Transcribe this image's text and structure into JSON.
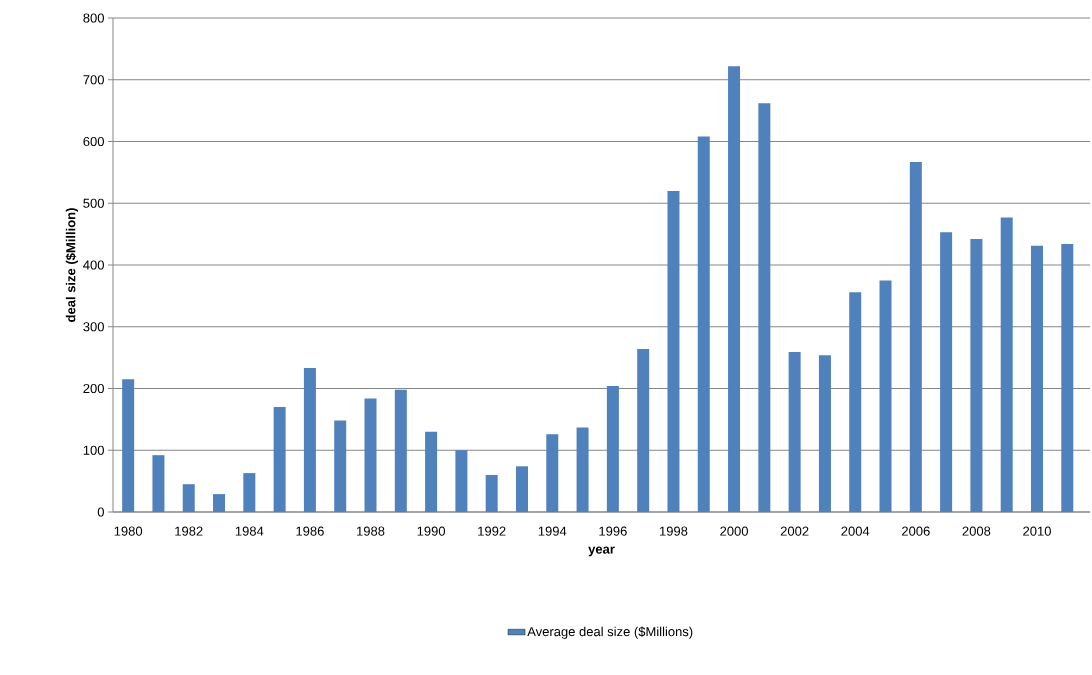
{
  "chart_data": {
    "type": "bar",
    "xlabel": "year",
    "ylabel": "deal size ($Million)",
    "categories": [
      "1980",
      null,
      "1982",
      null,
      "1984",
      null,
      "1986",
      null,
      "1988",
      null,
      "1990",
      null,
      "1992",
      null,
      "1994",
      null,
      "1996",
      null,
      "1998",
      null,
      "2000",
      null,
      "2002",
      null,
      "2004",
      null,
      "2006",
      null,
      "2008",
      null,
      "2010",
      null
    ],
    "series": [
      {
        "name": "Average deal size ($Millions)",
        "color": "#4f81bd",
        "values": [
          215,
          92,
          45,
          29,
          63,
          170,
          233,
          148,
          184,
          198,
          130,
          100,
          60,
          74,
          126,
          137,
          204,
          264,
          520,
          608,
          722,
          662,
          259,
          254,
          356,
          375,
          567,
          453,
          442,
          477,
          431,
          434
        ]
      }
    ],
    "ylim": [
      0,
      800
    ],
    "yticks": [
      0,
      100,
      200,
      300,
      400,
      500,
      600,
      700,
      800
    ],
    "grid": "y",
    "legend": "bottom"
  }
}
